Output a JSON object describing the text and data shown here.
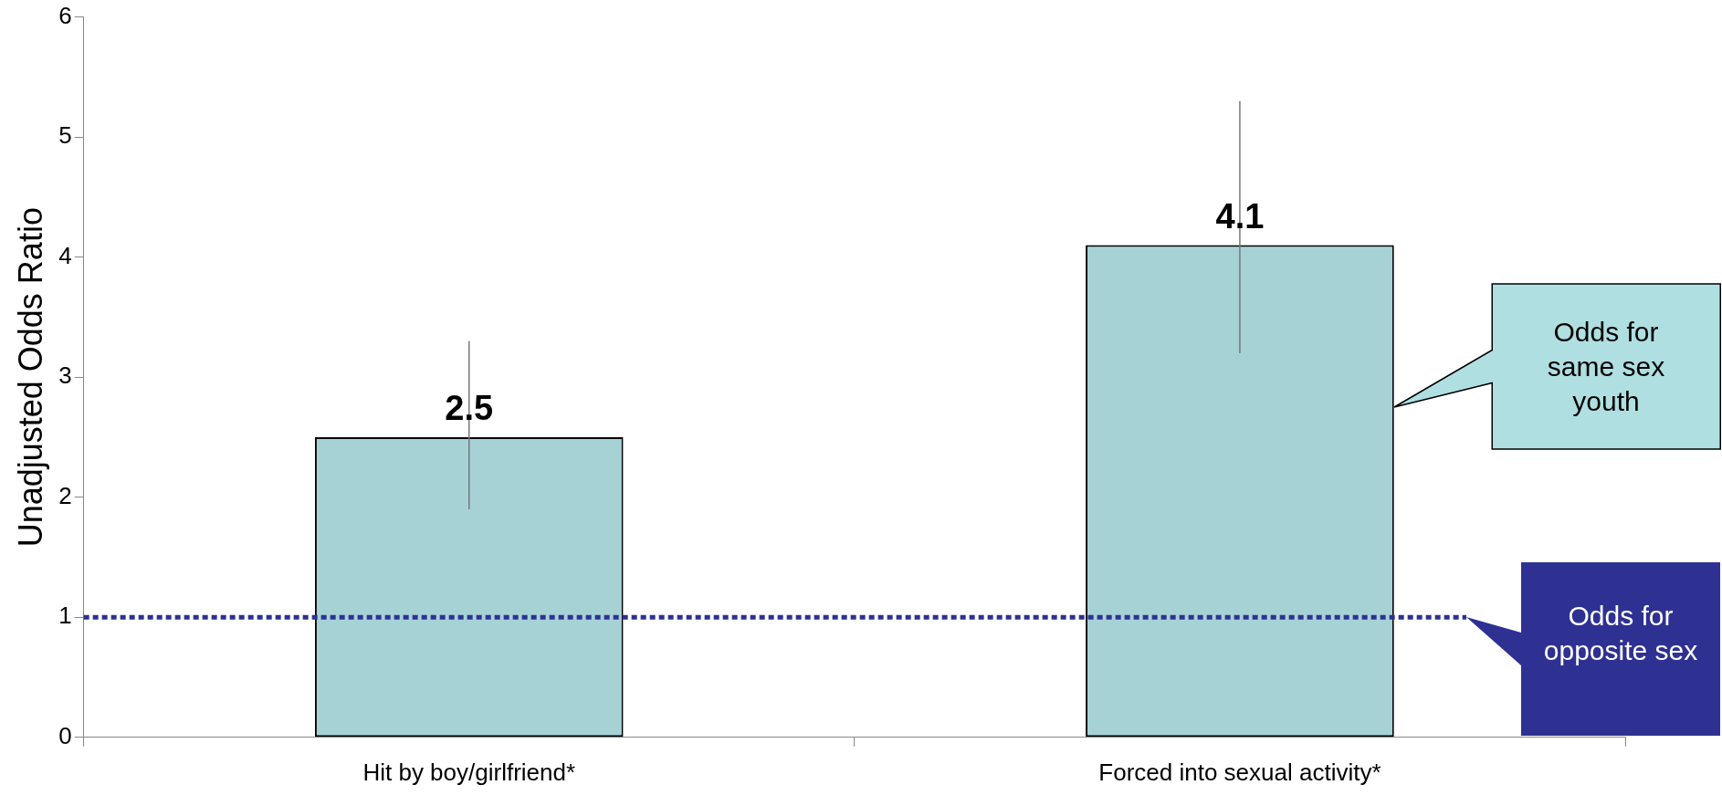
{
  "chart_data": {
    "type": "bar",
    "ylabel": "Unadjusted Odds Ratio",
    "categories": [
      "Hit by boy/girlfriend*",
      "Forced into sexual activity*"
    ],
    "values": [
      2.5,
      4.1
    ],
    "color": "#a6d2d6",
    "errors": [
      [
        1.9,
        3.3
      ],
      [
        3.2,
        5.3
      ]
    ],
    "data_labels": true,
    "ylim": [
      0,
      6
    ],
    "yticks": [
      0,
      1,
      2,
      3,
      4,
      5,
      6
    ],
    "grid": false,
    "legend": false,
    "ref_lines": [
      {
        "axis": "y",
        "value": 1,
        "label": "Odds for opposite sex",
        "color": "#2e3192",
        "line_style": "dotted"
      }
    ],
    "annotations": [
      "Odds for same sex youth"
    ]
  }
}
